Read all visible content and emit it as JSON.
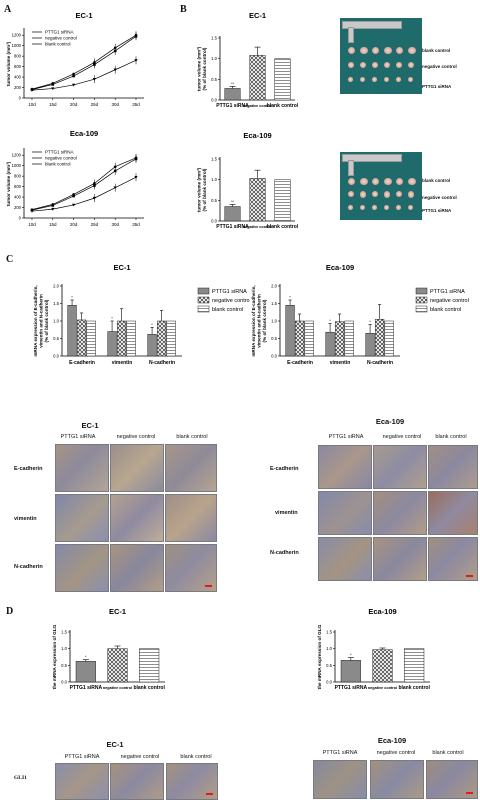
{
  "panel_letters": {
    "a": "A",
    "b": "B",
    "c": "C",
    "d": "D"
  },
  "chart_data": [
    {
      "id": "A-EC1",
      "type": "line",
      "title": "EC-1",
      "ylabel": "tumor volume (mm³)",
      "categories": [
        "10d",
        "15d",
        "20d",
        "25d",
        "30d",
        "35d"
      ],
      "yticks": [
        0,
        200,
        400,
        600,
        800,
        1000,
        1200
      ],
      "ylim": [
        0,
        1300
      ],
      "series": [
        {
          "name": "PTTG1 siRNA",
          "values": [
            150,
            180,
            250,
            360,
            540,
            720
          ]
        },
        {
          "name": "negative control",
          "values": [
            160,
            260,
            420,
            640,
            900,
            1180
          ]
        },
        {
          "name": "blank control",
          "values": [
            170,
            280,
            460,
            680,
            960,
            1200
          ]
        }
      ],
      "legend": "top-left"
    },
    {
      "id": "A-Eca109",
      "type": "line",
      "title": "Eca-109",
      "ylabel": "tumor volume (mm³)",
      "categories": [
        "10d",
        "15d",
        "20d",
        "25d",
        "30d",
        "35d"
      ],
      "yticks": [
        0,
        200,
        400,
        600,
        800,
        1000,
        1200
      ],
      "ylim": [
        0,
        1300
      ],
      "series": [
        {
          "name": "PTTG1 siRNA",
          "values": [
            130,
            170,
            250,
            380,
            580,
            780
          ]
        },
        {
          "name": "negative control",
          "values": [
            150,
            240,
            420,
            620,
            900,
            1130
          ]
        },
        {
          "name": "blank control",
          "values": [
            160,
            260,
            450,
            660,
            980,
            1150
          ]
        }
      ],
      "legend": "top-left"
    },
    {
      "id": "B-EC1",
      "type": "bar",
      "title": "EC-1",
      "ylabel": "tumor volume (mm³) (% of blank control)",
      "categories": [
        "PTTG1 siRNA",
        "negative control",
        "blank control"
      ],
      "values": [
        0.28,
        1.08,
        1.0
      ],
      "errors": [
        0.05,
        0.2,
        0
      ],
      "annotations": [
        "**",
        "",
        ""
      ],
      "yticks": [
        "0.0",
        "0.5",
        "1.0",
        "1.5"
      ],
      "ylim": [
        0,
        1.5
      ]
    },
    {
      "id": "B-Eca109",
      "type": "bar",
      "title": "Eca-109",
      "ylabel": "tumor volume (mm³) (% of blank control)",
      "categories": [
        "PTTG1 siRNA",
        "negative control",
        "blank control"
      ],
      "values": [
        0.35,
        1.03,
        1.0
      ],
      "errors": [
        0.05,
        0.2,
        0
      ],
      "annotations": [
        "**",
        "",
        ""
      ],
      "yticks": [
        "0.0",
        "0.5",
        "1.0",
        "1.5"
      ],
      "ylim": [
        0,
        1.5
      ]
    },
    {
      "id": "C-EC1",
      "type": "bar",
      "title": "EC-1",
      "ylabel": "mRNA expression of E-cadherin, vimentin and N-cadherin (% of blank control)",
      "categories": [
        "E-cadherin",
        "vimentin",
        "N-cadherin"
      ],
      "series": [
        {
          "name": "PTTG1 siRNA",
          "values": [
            1.45,
            0.7,
            0.62
          ],
          "errors": [
            0.15,
            0.3,
            0.2
          ]
        },
        {
          "name": "negative control",
          "values": [
            1.03,
            1.0,
            1.0
          ],
          "errors": [
            0.2,
            0.35,
            0.3
          ]
        },
        {
          "name": "blank control",
          "values": [
            1.0,
            1.0,
            1.0
          ],
          "errors": [
            0,
            0,
            0
          ]
        }
      ],
      "annotations": [
        "*",
        "*",
        "*"
      ],
      "yticks": [
        "0.0",
        "0.5",
        "1.0",
        "1.5",
        "2.0"
      ],
      "ylim": [
        0,
        2.0
      ],
      "legend": "right"
    },
    {
      "id": "C-Eca109",
      "type": "bar",
      "title": "Eca-109",
      "ylabel": "mRNA expression of E-cadherin, vimentin and N-cadherin (% of blank control)",
      "categories": [
        "E-cadherin",
        "vimentin",
        "N-cadherin"
      ],
      "series": [
        {
          "name": "PTTG1 siRNA",
          "values": [
            1.45,
            0.68,
            0.65
          ],
          "errors": [
            0.15,
            0.25,
            0.25
          ]
        },
        {
          "name": "negative control",
          "values": [
            1.0,
            0.98,
            1.05
          ],
          "errors": [
            0.2,
            0.22,
            0.42
          ]
        },
        {
          "name": "blank control",
          "values": [
            1.0,
            1.0,
            1.0
          ],
          "errors": [
            0,
            0,
            0
          ]
        }
      ],
      "annotations": [
        "*",
        "*",
        "*"
      ],
      "yticks": [
        "0.0",
        "0.5",
        "1.0",
        "1.5",
        "2.0"
      ],
      "ylim": [
        0,
        2.0
      ],
      "legend": "right"
    },
    {
      "id": "D-EC1",
      "type": "bar",
      "title": "EC-1",
      "ylabel": "the mRNA expression of GLI1",
      "categories": [
        "PTTG1 siRNA",
        "negative control",
        "blank control"
      ],
      "values": [
        0.62,
        1.0,
        1.0
      ],
      "errors": [
        0.05,
        0.08,
        0
      ],
      "annotations": [
        "*",
        "",
        ""
      ],
      "yticks": [
        "0.0",
        "0.5",
        "1.0",
        "1.5"
      ],
      "ylim": [
        0,
        1.5
      ]
    },
    {
      "id": "D-Eca109",
      "type": "bar",
      "title": "Eca-109",
      "ylabel": "the mRNA expression of GLI1",
      "categories": [
        "PTTG1 siRNA",
        "negative control",
        "blank control"
      ],
      "values": [
        0.65,
        0.97,
        1.0
      ],
      "errors": [
        0.08,
        0.05,
        0
      ],
      "annotations": [
        "*",
        "",
        ""
      ],
      "yticks": [
        "0.0",
        "0.5",
        "1.0",
        "1.5"
      ],
      "ylim": [
        0,
        1.5
      ]
    }
  ],
  "photos": {
    "labels": [
      "blank control",
      "negative control",
      "PTTG1 siRNA"
    ]
  },
  "ihc_c": {
    "ec1": {
      "title": "EC-1",
      "columns": [
        "PTTG1 siRNA",
        "negative control",
        "blank control"
      ],
      "rows": [
        "E-cadherin",
        "vimentin",
        "N-cadherin"
      ]
    },
    "eca109": {
      "title": "Eca-109",
      "columns": [
        "PTTG1 siRNA",
        "negative control",
        "blank control"
      ],
      "rows": [
        "E-cadherin",
        "vimentin",
        "N-cadherin"
      ]
    }
  },
  "ihc_d": {
    "ec1": {
      "title": "EC-1",
      "columns": [
        "PTTG1 siRNA",
        "negative control",
        "blank control"
      ],
      "rows": [
        "GLI1"
      ]
    },
    "eca109": {
      "title": "Eca-109",
      "columns": [
        "PTTG1 siRNA",
        "negative control",
        "blank control"
      ]
    }
  },
  "colors": {
    "bar_dark": "#8a8a8a",
    "tissue_blue": "#7f86a8",
    "tissue_brown": "#a08f7d",
    "scale_bar": "#e01c1c",
    "photo_bg": "#1f6a6a"
  }
}
